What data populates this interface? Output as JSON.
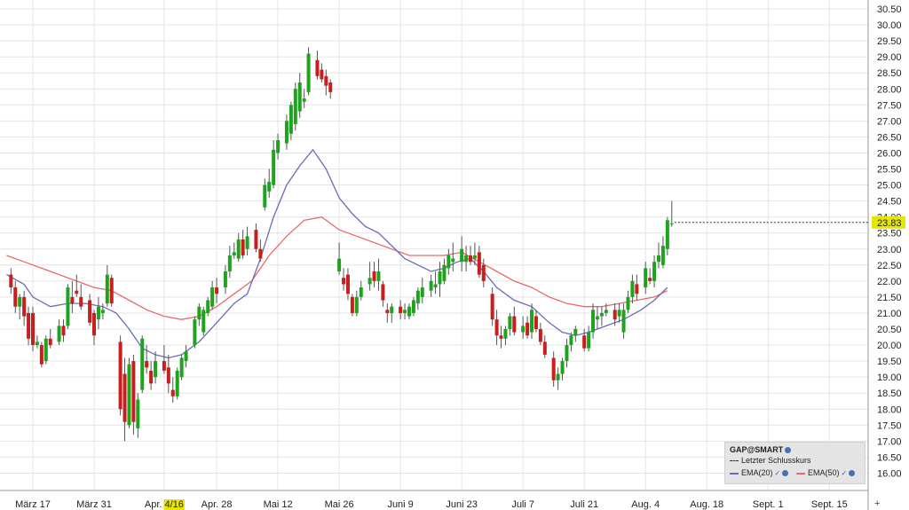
{
  "chart_data": {
    "type": "candlestick",
    "ylim": [
      15.7,
      30.7
    ],
    "yticks": [
      "16.00",
      "16.50",
      "17.00",
      "17.50",
      "18.00",
      "18.50",
      "19.00",
      "19.50",
      "20.00",
      "20.50",
      "21.00",
      "21.50",
      "22.00",
      "22.50",
      "23.00",
      "23.50",
      "24.00",
      "24.50",
      "25.00",
      "25.50",
      "26.00",
      "26.50",
      "27.00",
      "27.50",
      "28.00",
      "28.50",
      "29.00",
      "29.50",
      "30.00",
      "30.50"
    ],
    "xticks": [
      {
        "label": "März 17",
        "day": 0
      },
      {
        "label": "März 31",
        "day": 14
      },
      {
        "label": "Apr. ",
        "highlight": "4/16",
        "day": 30
      },
      {
        "label": "Apr. 28",
        "day": 42
      },
      {
        "label": "Mai 12",
        "day": 56
      },
      {
        "label": "Mai 26",
        "day": 70
      },
      {
        "label": "Juni 9",
        "day": 84
      },
      {
        "label": "Juni 23",
        "day": 98
      },
      {
        "label": "Juli 7",
        "day": 112
      },
      {
        "label": "Juli 21",
        "day": 126
      },
      {
        "label": "Aug. 4",
        "day": 140
      },
      {
        "label": "Aug. 18",
        "day": 154
      },
      {
        "label": "Sept. 1",
        "day": 168
      },
      {
        "label": "Sept. 15",
        "day": 182
      }
    ],
    "last_close": "23.83",
    "candles": [
      [
        -5,
        22.2,
        22.4,
        21.6,
        21.8
      ],
      [
        -4,
        21.8,
        22.0,
        21.0,
        21.2
      ],
      [
        -3,
        21.2,
        21.6,
        20.8,
        21.5
      ],
      [
        -2,
        21.5,
        21.7,
        20.6,
        20.9
      ],
      [
        -1,
        21.0,
        21.2,
        20.0,
        20.2
      ],
      [
        0,
        21.0,
        21.2,
        19.8,
        20.0
      ],
      [
        1,
        20.0,
        20.3,
        19.9,
        20.1
      ],
      [
        2,
        20.0,
        20.1,
        19.3,
        19.4
      ],
      [
        3,
        19.5,
        20.3,
        19.4,
        20.2
      ],
      [
        4,
        20.2,
        20.5,
        19.9,
        20.0
      ],
      [
        6,
        20.1,
        20.8,
        20.0,
        20.6
      ],
      [
        7,
        20.6,
        20.8,
        20.1,
        20.3
      ],
      [
        8,
        20.6,
        21.9,
        20.5,
        21.8
      ],
      [
        9,
        21.5,
        22.0,
        21.0,
        21.3
      ],
      [
        10,
        21.7,
        22.2,
        21.5,
        21.6
      ],
      [
        11,
        21.5,
        21.9,
        21.1,
        21.2
      ],
      [
        13,
        21.4,
        21.6,
        20.6,
        20.7
      ],
      [
        14,
        21.0,
        21.1,
        20.0,
        20.3
      ],
      [
        15,
        20.8,
        21.5,
        20.5,
        21.2
      ],
      [
        16,
        21.0,
        21.3,
        20.8,
        21.1
      ],
      [
        17,
        21.3,
        22.5,
        21.2,
        22.2
      ],
      [
        18,
        22.1,
        22.2,
        21.2,
        21.3
      ],
      [
        20,
        20.1,
        20.3,
        17.8,
        18.0
      ],
      [
        21,
        19.1,
        19.6,
        17.0,
        17.6
      ],
      [
        22,
        17.5,
        19.6,
        17.4,
        19.4
      ],
      [
        23,
        19.5,
        19.7,
        17.2,
        17.6
      ],
      [
        24,
        17.4,
        18.5,
        17.1,
        18.3
      ],
      [
        25,
        18.6,
        20.3,
        18.5,
        20.2
      ],
      [
        26,
        19.5,
        20.0,
        19.1,
        19.3
      ],
      [
        27,
        19.2,
        19.5,
        18.6,
        18.8
      ],
      [
        28,
        19.0,
        19.8,
        18.8,
        19.5
      ],
      [
        30,
        19.5,
        20.0,
        19.1,
        19.2
      ],
      [
        31,
        19.3,
        19.7,
        18.5,
        18.8
      ],
      [
        32,
        18.6,
        19.0,
        18.2,
        18.4
      ],
      [
        33,
        18.4,
        19.3,
        18.3,
        19.2
      ],
      [
        34,
        19.0,
        19.7,
        18.9,
        19.6
      ],
      [
        35,
        19.5,
        20.0,
        19.3,
        19.8
      ],
      [
        37,
        20.0,
        20.9,
        19.9,
        20.8
      ],
      [
        38,
        20.8,
        21.3,
        20.6,
        21.2
      ],
      [
        39,
        20.4,
        21.2,
        20.3,
        21.1
      ],
      [
        40,
        21.0,
        21.5,
        20.9,
        21.4
      ],
      [
        41,
        21.2,
        22.0,
        21.1,
        21.8
      ],
      [
        42,
        21.8,
        22.1,
        21.3,
        21.6
      ],
      [
        44,
        21.8,
        22.5,
        21.6,
        22.3
      ],
      [
        45,
        22.3,
        23.1,
        22.1,
        22.8
      ],
      [
        46,
        22.8,
        23.2,
        22.7,
        22.9
      ],
      [
        47,
        22.7,
        23.5,
        22.6,
        23.3
      ],
      [
        48,
        23.3,
        23.6,
        22.7,
        22.8
      ],
      [
        49,
        23.0,
        23.7,
        22.8,
        23.4
      ],
      [
        51,
        23.6,
        23.8,
        22.9,
        23.0
      ],
      [
        52,
        23.0,
        23.3,
        22.6,
        22.7
      ],
      [
        53,
        24.3,
        25.2,
        24.2,
        25.0
      ],
      [
        54,
        24.8,
        25.5,
        24.6,
        25.1
      ],
      [
        55,
        25.0,
        26.4,
        24.9,
        26.1
      ],
      [
        56,
        26.0,
        26.6,
        25.8,
        26.4
      ],
      [
        58,
        26.3,
        27.2,
        26.1,
        27.0
      ],
      [
        59,
        26.6,
        27.6,
        26.4,
        27.5
      ],
      [
        60,
        26.9,
        28.2,
        26.7,
        28.0
      ],
      [
        61,
        27.3,
        28.5,
        27.1,
        28.2
      ],
      [
        62,
        27.6,
        28.0,
        27.4,
        27.7
      ],
      [
        63,
        27.9,
        29.3,
        27.8,
        29.1
      ],
      [
        65,
        28.9,
        29.2,
        28.3,
        28.4
      ],
      [
        66,
        28.6,
        28.8,
        28.2,
        28.3
      ],
      [
        67,
        28.4,
        28.6,
        27.8,
        28.1
      ],
      [
        68,
        28.2,
        28.3,
        27.7,
        27.9
      ],
      [
        70,
        22.3,
        23.2,
        22.2,
        22.7
      ],
      [
        71,
        22.1,
        22.4,
        21.7,
        21.9
      ],
      [
        72,
        22.2,
        22.4,
        21.4,
        21.6
      ],
      [
        73,
        21.5,
        21.6,
        20.9,
        21.0
      ],
      [
        74,
        21.0,
        21.7,
        20.9,
        21.5
      ],
      [
        75,
        21.5,
        22.0,
        21.4,
        21.8
      ],
      [
        77,
        21.9,
        22.6,
        21.7,
        22.1
      ],
      [
        78,
        22.3,
        22.6,
        21.8,
        22.0
      ],
      [
        79,
        22.0,
        22.7,
        21.7,
        22.3
      ],
      [
        80,
        21.9,
        22.0,
        21.2,
        21.4
      ],
      [
        81,
        21.1,
        21.3,
        20.7,
        21.0
      ],
      [
        82,
        21.0,
        21.3,
        20.7,
        21.2
      ],
      [
        84,
        21.2,
        21.4,
        20.8,
        21.0
      ],
      [
        85,
        21.0,
        21.3,
        20.8,
        21.1
      ],
      [
        86,
        20.9,
        21.3,
        20.8,
        21.2
      ],
      [
        87,
        21.0,
        21.5,
        20.9,
        21.4
      ],
      [
        88,
        21.3,
        21.8,
        21.1,
        21.7
      ],
      [
        89,
        21.5,
        22.1,
        21.3,
        21.8
      ],
      [
        91,
        21.7,
        22.2,
        21.5,
        22.0
      ],
      [
        92,
        21.8,
        22.3,
        21.6,
        21.9
      ],
      [
        93,
        21.9,
        22.6,
        21.5,
        22.3
      ],
      [
        94,
        22.0,
        22.7,
        21.9,
        22.5
      ],
      [
        95,
        22.4,
        23.0,
        22.2,
        22.8
      ],
      [
        96,
        22.6,
        23.2,
        22.3,
        22.7
      ],
      [
        98,
        22.6,
        23.4,
        22.3,
        23.0
      ],
      [
        99,
        22.6,
        23.1,
        22.3,
        22.8
      ],
      [
        100,
        22.8,
        23.1,
        22.5,
        22.6
      ],
      [
        101,
        22.7,
        23.2,
        22.5,
        22.8
      ],
      [
        102,
        22.9,
        23.1,
        22.1,
        22.2
      ],
      [
        103,
        22.5,
        22.7,
        21.8,
        22.0
      ],
      [
        105,
        21.6,
        21.8,
        20.6,
        20.8
      ],
      [
        106,
        20.8,
        21.1,
        20.0,
        20.3
      ],
      [
        107,
        20.3,
        20.6,
        19.9,
        20.2
      ],
      [
        108,
        20.2,
        20.6,
        20.0,
        20.5
      ],
      [
        109,
        20.5,
        21.0,
        20.3,
        20.9
      ],
      [
        110,
        20.9,
        21.2,
        20.3,
        20.4
      ],
      [
        112,
        20.4,
        20.9,
        20.2,
        20.6
      ],
      [
        113,
        20.7,
        20.9,
        20.2,
        20.3
      ],
      [
        114,
        20.4,
        21.3,
        20.2,
        21.1
      ],
      [
        115,
        20.9,
        21.1,
        20.4,
        20.5
      ],
      [
        116,
        20.5,
        20.7,
        20.0,
        20.1
      ],
      [
        117,
        20.1,
        20.3,
        19.6,
        19.7
      ],
      [
        119,
        19.6,
        19.8,
        18.7,
        18.9
      ],
      [
        120,
        18.9,
        19.3,
        18.6,
        19.1
      ],
      [
        121,
        19.1,
        19.6,
        18.9,
        19.5
      ],
      [
        122,
        19.5,
        20.2,
        19.3,
        20.0
      ],
      [
        123,
        20.0,
        20.4,
        19.8,
        20.3
      ],
      [
        124,
        20.3,
        20.6,
        20.1,
        20.5
      ],
      [
        126,
        20.3,
        20.5,
        19.8,
        19.9
      ],
      [
        127,
        19.9,
        20.6,
        19.8,
        20.4
      ],
      [
        128,
        20.4,
        21.3,
        20.2,
        21.1
      ],
      [
        129,
        20.8,
        21.2,
        20.5,
        20.9
      ],
      [
        130,
        20.9,
        21.2,
        20.6,
        21.0
      ],
      [
        131,
        21.0,
        21.3,
        20.9,
        21.1
      ],
      [
        133,
        21.1,
        21.3,
        20.6,
        20.8
      ],
      [
        134,
        20.9,
        21.3,
        20.7,
        21.1
      ],
      [
        135,
        20.4,
        21.3,
        20.2,
        21.1
      ],
      [
        136,
        21.1,
        21.7,
        21.0,
        21.5
      ],
      [
        137,
        21.5,
        22.2,
        21.3,
        22.0
      ],
      [
        138,
        21.9,
        22.2,
        21.4,
        21.6
      ],
      [
        140,
        21.8,
        22.6,
        21.6,
        22.4
      ],
      [
        141,
        22.1,
        22.4,
        21.9,
        22.0
      ],
      [
        142,
        22.0,
        22.8,
        21.8,
        22.6
      ],
      [
        143,
        22.6,
        23.2,
        22.4,
        22.8
      ],
      [
        144,
        22.5,
        23.4,
        22.4,
        23.1
      ],
      [
        145,
        23.0,
        24.0,
        22.8,
        23.9
      ],
      [
        146,
        23.8,
        24.5,
        23.7,
        23.8
      ]
    ],
    "ema20": [
      [
        -6,
        22.2
      ],
      [
        -2,
        21.9
      ],
      [
        0,
        21.5
      ],
      [
        4,
        21.2
      ],
      [
        8,
        21.3
      ],
      [
        12,
        21.3
      ],
      [
        16,
        21.2
      ],
      [
        19,
        21.0
      ],
      [
        22,
        20.5
      ],
      [
        25,
        19.9
      ],
      [
        28,
        19.7
      ],
      [
        31,
        19.6
      ],
      [
        34,
        19.7
      ],
      [
        38,
        20.1
      ],
      [
        42,
        20.7
      ],
      [
        46,
        21.3
      ],
      [
        49,
        21.6
      ],
      [
        52,
        22.7
      ],
      [
        55,
        24.0
      ],
      [
        58,
        25.0
      ],
      [
        61,
        25.6
      ],
      [
        64,
        26.1
      ],
      [
        67,
        25.5
      ],
      [
        70,
        24.6
      ],
      [
        73,
        24.1
      ],
      [
        76,
        23.7
      ],
      [
        79,
        23.5
      ],
      [
        82,
        23.1
      ],
      [
        85,
        22.7
      ],
      [
        88,
        22.5
      ],
      [
        91,
        22.3
      ],
      [
        94,
        22.4
      ],
      [
        97,
        22.6
      ],
      [
        100,
        22.7
      ],
      [
        103,
        22.3
      ],
      [
        106,
        21.8
      ],
      [
        110,
        21.4
      ],
      [
        114,
        21.2
      ],
      [
        118,
        20.7
      ],
      [
        121,
        20.4
      ],
      [
        124,
        20.3
      ],
      [
        127,
        20.4
      ],
      [
        131,
        20.6
      ],
      [
        135,
        20.8
      ],
      [
        139,
        21.1
      ],
      [
        142,
        21.4
      ],
      [
        145,
        21.8
      ]
    ],
    "ema50": [
      [
        -6,
        22.8
      ],
      [
        -2,
        22.6
      ],
      [
        2,
        22.4
      ],
      [
        6,
        22.2
      ],
      [
        10,
        22.0
      ],
      [
        14,
        21.8
      ],
      [
        18,
        21.7
      ],
      [
        22,
        21.4
      ],
      [
        26,
        21.1
      ],
      [
        30,
        20.9
      ],
      [
        34,
        20.8
      ],
      [
        38,
        20.9
      ],
      [
        42,
        21.2
      ],
      [
        46,
        21.6
      ],
      [
        50,
        22.0
      ],
      [
        54,
        22.8
      ],
      [
        58,
        23.4
      ],
      [
        62,
        23.9
      ],
      [
        66,
        24.0
      ],
      [
        70,
        23.6
      ],
      [
        74,
        23.4
      ],
      [
        78,
        23.2
      ],
      [
        82,
        23.0
      ],
      [
        86,
        22.8
      ],
      [
        90,
        22.8
      ],
      [
        94,
        22.8
      ],
      [
        98,
        22.9
      ],
      [
        102,
        22.6
      ],
      [
        106,
        22.3
      ],
      [
        110,
        22.0
      ],
      [
        114,
        21.8
      ],
      [
        118,
        21.5
      ],
      [
        122,
        21.3
      ],
      [
        126,
        21.2
      ],
      [
        130,
        21.2
      ],
      [
        134,
        21.3
      ],
      [
        138,
        21.4
      ],
      [
        142,
        21.5
      ],
      [
        145,
        21.7
      ]
    ]
  },
  "legend": {
    "title": "GAP@SMART",
    "last_close_label": "Letzter Schlusskurs",
    "ema20_label": "EMA(20)",
    "ema50_label": "EMA(50)"
  },
  "colors": {
    "up": "#1fa31f",
    "down": "#c81e1e",
    "ema20": "#6a6ab8",
    "ema50": "#e86a6a",
    "grid": "#e4e4e4",
    "last_close_bg": "#e6e600"
  },
  "add_button": "+"
}
